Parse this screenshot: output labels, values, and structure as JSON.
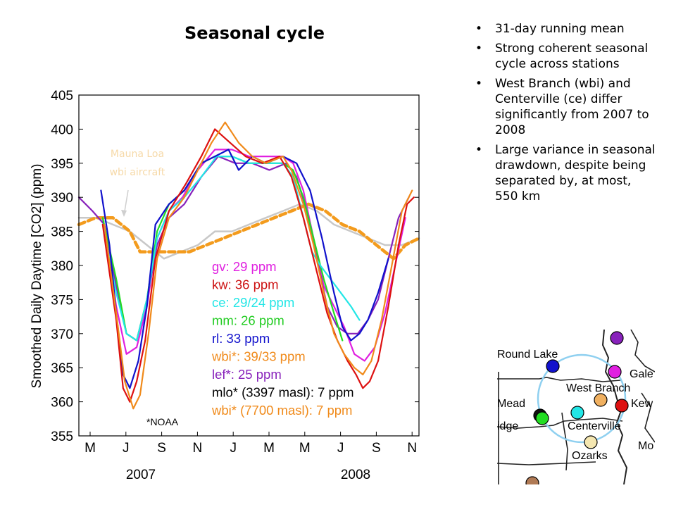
{
  "slide": {
    "title": "Seasonal cycle",
    "bullets": [
      "31-day running mean",
      "Strong coherent seasonal cycle across stations",
      "West Branch (wbi) and Centerville (ce) differ significantly from 2007 to 2008",
      "Large variance in seasonal drawdown, despite being separated by, at most, 550 km"
    ]
  },
  "chart_data": {
    "type": "line",
    "title": "",
    "xlabel": "",
    "ylabel": "Smoothed Daily Daytime [CO2] (ppm)",
    "ylim": [
      355,
      405
    ],
    "yticks": [
      355,
      360,
      365,
      370,
      375,
      380,
      385,
      390,
      395,
      400,
      405
    ],
    "xlim": [
      0,
      20
    ],
    "xtick_labels": [
      "M",
      "J",
      "S",
      "N",
      "J",
      "M",
      "M",
      "J",
      "S",
      "N"
    ],
    "year_labels": [
      "2007",
      "2008"
    ],
    "grid": false,
    "legend_placement": "inside-lower-right",
    "annotation_mlo": "Mauna Loa",
    "annotation_wbi_aircraft": "wbi aircraft",
    "annotation_noaa": "*NOAA",
    "series": [
      {
        "name": "gv: 29 ppm",
        "color": "#e020e0",
        "width": 2.2,
        "points": [
          [
            1.4,
            387
          ],
          [
            2.2,
            374
          ],
          [
            2.8,
            367
          ],
          [
            3.4,
            368
          ],
          [
            4.0,
            374
          ],
          [
            4.6,
            384
          ],
          [
            5.3,
            388
          ],
          [
            6.1,
            390
          ],
          [
            7.0,
            394
          ],
          [
            8.0,
            397
          ],
          [
            9.0,
            397
          ],
          [
            10.0,
            396
          ],
          [
            11.0,
            396
          ],
          [
            12.0,
            396
          ],
          [
            12.6,
            395
          ],
          [
            13.2,
            391
          ],
          [
            13.8,
            384
          ],
          [
            14.4,
            377
          ],
          [
            15.0,
            374
          ],
          [
            15.6,
            371
          ],
          [
            16.2,
            367
          ],
          [
            16.8,
            366
          ],
          [
            17.4,
            368
          ],
          [
            18.0,
            373
          ],
          [
            18.6,
            380
          ],
          [
            19.2,
            387
          ]
        ]
      },
      {
        "name": "kw: 36 ppm",
        "color": "#dd1111",
        "width": 2.2,
        "points": [
          [
            1.4,
            386
          ],
          [
            2.2,
            372
          ],
          [
            2.6,
            362
          ],
          [
            3.0,
            360
          ],
          [
            3.4,
            363
          ],
          [
            3.9,
            369
          ],
          [
            4.5,
            381
          ],
          [
            5.3,
            388
          ],
          [
            6.3,
            392
          ],
          [
            7.2,
            396
          ],
          [
            8.0,
            400
          ],
          [
            8.9,
            398
          ],
          [
            9.8,
            396
          ],
          [
            10.8,
            395
          ],
          [
            11.8,
            396
          ],
          [
            12.5,
            393
          ],
          [
            13.2,
            387
          ],
          [
            13.9,
            380
          ],
          [
            14.6,
            373
          ],
          [
            15.2,
            369
          ],
          [
            15.8,
            366
          ],
          [
            16.3,
            364
          ],
          [
            16.7,
            362
          ],
          [
            17.1,
            363
          ],
          [
            17.6,
            366
          ],
          [
            18.2,
            374
          ],
          [
            18.8,
            383
          ],
          [
            19.3,
            389
          ],
          [
            19.7,
            390
          ]
        ]
      },
      {
        "name": "ce: 29/24 ppm",
        "color": "#22e6e6",
        "width": 2.2,
        "points": [
          [
            1.4,
            386
          ],
          [
            2.2,
            376
          ],
          [
            2.8,
            370
          ],
          [
            3.4,
            369
          ],
          [
            4.0,
            375
          ],
          [
            4.6,
            384
          ],
          [
            5.3,
            388
          ],
          [
            6.2,
            390
          ],
          [
            7.2,
            393
          ],
          [
            8.1,
            396
          ],
          [
            9.0,
            396
          ],
          [
            10.0,
            395
          ],
          [
            11.0,
            395
          ],
          [
            12.0,
            395
          ],
          [
            12.6,
            393
          ],
          [
            13.2,
            387
          ],
          [
            13.7,
            382
          ],
          [
            14.2,
            380
          ],
          [
            14.8,
            378
          ],
          [
            15.4,
            376
          ],
          [
            16.0,
            374
          ],
          [
            16.5,
            372
          ]
        ]
      },
      {
        "name": "mm: 26 ppm",
        "color": "#22dd22",
        "width": 2.2,
        "points": [
          [
            1.4,
            387
          ],
          [
            2.2,
            378
          ],
          [
            2.8,
            370
          ],
          [
            3.4,
            369
          ],
          [
            4.0,
            375
          ],
          [
            4.6,
            385
          ],
          [
            5.3,
            389
          ],
          [
            6.2,
            391
          ],
          [
            7.2,
            395
          ],
          [
            8.0,
            396
          ],
          [
            9.0,
            396
          ],
          [
            10.0,
            395
          ],
          [
            11.0,
            395
          ],
          [
            12.0,
            395
          ],
          [
            12.6,
            394
          ],
          [
            13.2,
            390
          ],
          [
            13.8,
            384
          ],
          [
            14.4,
            378
          ],
          [
            15.0,
            373
          ],
          [
            15.5,
            369
          ]
        ]
      },
      {
        "name": "rl: 33 ppm",
        "color": "#1111cc",
        "width": 2.2,
        "points": [
          [
            1.3,
            391
          ],
          [
            1.8,
            383
          ],
          [
            2.2,
            373
          ],
          [
            2.6,
            364
          ],
          [
            3.0,
            362
          ],
          [
            3.5,
            366
          ],
          [
            4.0,
            374
          ],
          [
            4.5,
            386
          ],
          [
            5.3,
            389
          ],
          [
            6.2,
            391
          ],
          [
            7.2,
            395
          ],
          [
            8.0,
            396
          ],
          [
            8.8,
            397
          ],
          [
            9.4,
            394
          ],
          [
            10.2,
            396
          ],
          [
            11.0,
            395
          ],
          [
            12.0,
            396
          ],
          [
            12.8,
            395
          ],
          [
            13.6,
            391
          ],
          [
            14.3,
            384
          ],
          [
            15.0,
            376
          ],
          [
            15.5,
            371
          ],
          [
            16.0,
            369
          ],
          [
            16.5,
            370
          ],
          [
            17.0,
            372
          ],
          [
            17.6,
            376
          ],
          [
            18.2,
            381
          ]
        ]
      },
      {
        "name": "wbi*: 39/33 ppm",
        "color": "#f08a1a",
        "width": 2.2,
        "points": [
          [
            1.5,
            386
          ],
          [
            2.2,
            373
          ],
          [
            2.7,
            363
          ],
          [
            3.2,
            359
          ],
          [
            3.6,
            361
          ],
          [
            4.1,
            370
          ],
          [
            4.6,
            381
          ],
          [
            5.3,
            387
          ],
          [
            6.2,
            390
          ],
          [
            7.0,
            394
          ],
          [
            7.8,
            398
          ],
          [
            8.6,
            401
          ],
          [
            9.4,
            398
          ],
          [
            10.2,
            396
          ],
          [
            11.0,
            395
          ],
          [
            12.0,
            396
          ],
          [
            12.5,
            394
          ],
          [
            13.2,
            389
          ],
          [
            13.8,
            383
          ],
          [
            14.4,
            376
          ],
          [
            15.0,
            370
          ],
          [
            15.6,
            367
          ],
          [
            16.2,
            365
          ],
          [
            16.7,
            364
          ],
          [
            17.2,
            366
          ],
          [
            17.8,
            372
          ],
          [
            18.4,
            380
          ],
          [
            19.0,
            388
          ],
          [
            19.6,
            391
          ]
        ]
      },
      {
        "name": "lef*: 25 ppm",
        "color": "#8822bb",
        "width": 2.2,
        "points": [
          [
            0.0,
            390
          ],
          [
            0.8,
            388
          ],
          [
            1.5,
            386
          ],
          [
            2.2,
            377
          ],
          [
            2.8,
            370
          ],
          [
            3.4,
            369
          ],
          [
            4.0,
            375
          ],
          [
            4.6,
            383
          ],
          [
            5.3,
            387
          ],
          [
            6.2,
            389
          ],
          [
            7.2,
            393
          ],
          [
            8.2,
            396
          ],
          [
            9.2,
            395
          ],
          [
            10.2,
            395
          ],
          [
            11.2,
            394
          ],
          [
            12.2,
            395
          ],
          [
            12.8,
            393
          ],
          [
            13.4,
            388
          ],
          [
            14.0,
            381
          ],
          [
            14.6,
            374
          ],
          [
            15.2,
            371
          ],
          [
            15.8,
            370
          ],
          [
            16.4,
            370
          ],
          [
            17.0,
            372
          ],
          [
            17.6,
            375
          ],
          [
            18.2,
            381
          ],
          [
            18.8,
            387
          ],
          [
            19.4,
            390
          ]
        ]
      },
      {
        "name": "mlo* (3397 masl): 7 ppm",
        "color": "#c8c8c8",
        "width": 2.5,
        "points": [
          [
            0.0,
            387
          ],
          [
            1.0,
            387
          ],
          [
            2.0,
            386
          ],
          [
            3.0,
            385
          ],
          [
            4.0,
            383
          ],
          [
            5.0,
            381
          ],
          [
            6.0,
            382
          ],
          [
            7.0,
            383
          ],
          [
            8.0,
            385
          ],
          [
            9.0,
            385
          ],
          [
            10.0,
            386
          ],
          [
            11.0,
            387
          ],
          [
            12.0,
            388
          ],
          [
            13.0,
            389
          ],
          [
            14.0,
            388
          ],
          [
            15.0,
            386
          ],
          [
            16.0,
            385
          ],
          [
            17.0,
            384
          ],
          [
            18.0,
            383
          ],
          [
            19.0,
            383
          ],
          [
            20.0,
            384
          ]
        ]
      },
      {
        "name": "wbi* (7700 masl): 7 ppm",
        "color": "#f39b1d",
        "width": 4.5,
        "dash": "9,5",
        "points": [
          [
            0.0,
            386
          ],
          [
            1.0,
            387
          ],
          [
            2.0,
            387
          ],
          [
            3.0,
            385
          ],
          [
            3.6,
            382
          ],
          [
            4.5,
            382
          ],
          [
            5.5,
            382
          ],
          [
            6.5,
            382
          ],
          [
            7.5,
            383
          ],
          [
            8.5,
            384
          ],
          [
            9.5,
            385
          ],
          [
            10.5,
            386
          ],
          [
            11.5,
            387
          ],
          [
            12.5,
            388
          ],
          [
            13.5,
            389
          ],
          [
            14.5,
            388
          ],
          [
            15.5,
            386
          ],
          [
            16.5,
            385
          ],
          [
            17.5,
            383
          ],
          [
            18.5,
            381
          ],
          [
            19.2,
            383
          ],
          [
            20.0,
            384
          ]
        ]
      }
    ]
  },
  "map": {
    "labels": {
      "round_lake": "Round Lake",
      "west_branch": "West Branch",
      "galesville": "Gale",
      "mead": "Mead",
      "kewanee": "Kew",
      "ridge": "idge",
      "centerville": "Centerville",
      "ozarks": "Ozarks",
      "missouri": "Mo"
    },
    "colors": {
      "circle": "#8fd0f0",
      "river": "#1a1a1a"
    }
  }
}
